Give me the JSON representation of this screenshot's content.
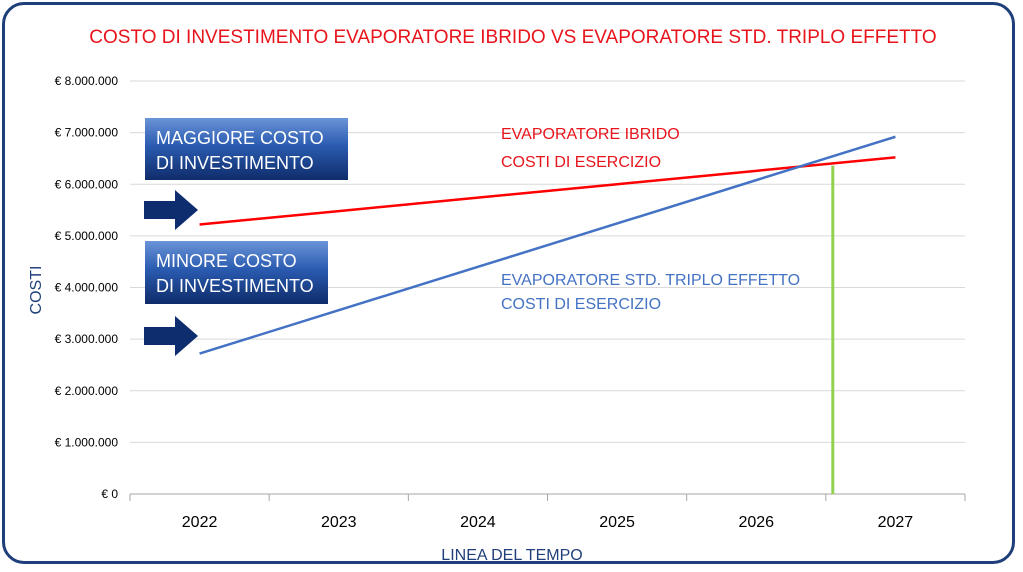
{
  "chart_data": {
    "type": "line",
    "title": "COSTO DI INVESTIMENTO EVAPORATORE IBRIDO VS EVAPORATORE STD. TRIPLO EFFETTO",
    "xlabel": "LINEA DEL TEMPO",
    "ylabel": "COSTI",
    "categories": [
      "2022",
      "2023",
      "2024",
      "2025",
      "2026",
      "2027"
    ],
    "y_ticks": [
      "€ 0",
      "€ 1.000.000",
      "€ 2.000.000",
      "€ 3.000.000",
      "€ 4.000.000",
      "€ 5.000.000",
      "€ 6.000.000",
      "€ 7.000.000",
      "€ 8.000.000"
    ],
    "ylim": [
      0,
      8000000
    ],
    "grid": true,
    "series": [
      {
        "key": "ibrido",
        "color": "#ff0000",
        "values": [
          5220000,
          5480000,
          5740000,
          6000000,
          6260000,
          6520000
        ]
      },
      {
        "key": "std",
        "color": "#4472c4",
        "values": [
          2720000,
          3560000,
          4400000,
          5240000,
          6080000,
          6920000
        ]
      }
    ],
    "intersection": {
      "x": 4.55,
      "y": 6360000,
      "color": "#92d050"
    },
    "annotations": {
      "ibrido": [
        "EVAPORATORE IBRIDO",
        "COSTI DI ESERCIZIO"
      ],
      "std": [
        "EVAPORATORE STD. TRIPLO EFFETTO",
        "COSTI DI ESERCIZIO"
      ]
    },
    "callouts": [
      {
        "lines": [
          "MAGGIORE COSTO",
          "DI INVESTIMENTO"
        ]
      },
      {
        "lines": [
          "MINORE COSTO",
          "DI INVESTIMENTO"
        ]
      }
    ],
    "arrow_color": "#0d2d6e"
  }
}
